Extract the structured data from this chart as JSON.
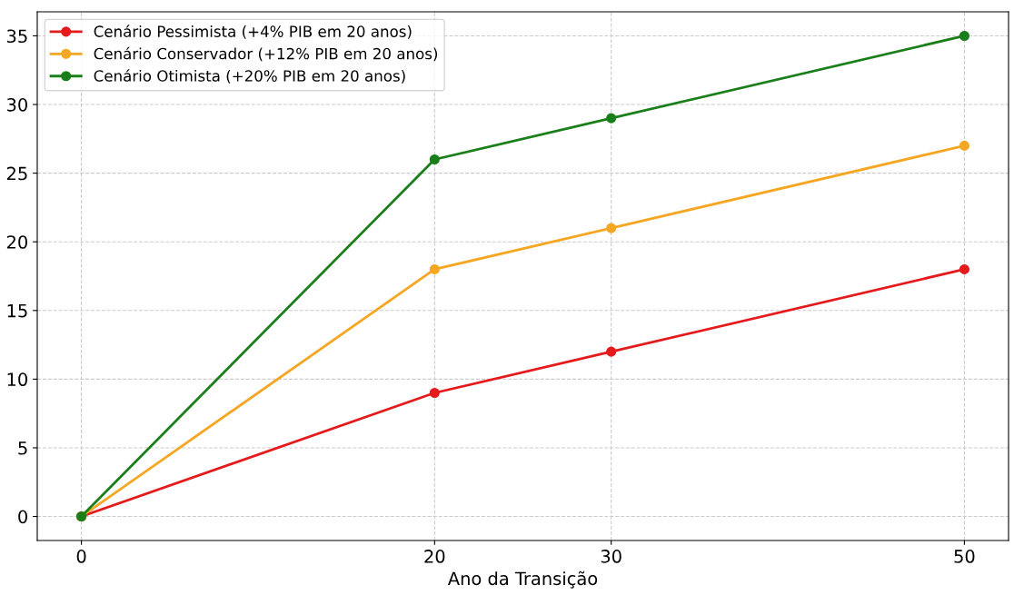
{
  "chart_data": {
    "type": "line",
    "xlabel": "Ano da Transição",
    "x": [
      0,
      20,
      30,
      50
    ],
    "series": [
      {
        "name": "Cenário Pessimista (+4% PIB em 20 anos)",
        "color": "#e41a1c",
        "values": [
          0,
          9,
          12,
          18
        ]
      },
      {
        "name": "Cenário Conservador (+12% PIB em 20 anos)",
        "color": "#f5a623",
        "values": [
          0,
          18,
          21,
          27
        ]
      },
      {
        "name": "Cenário Otimista (+20% PIB em 20 anos)",
        "color": "#1a7f1a",
        "values": [
          0,
          26,
          29,
          35
        ]
      }
    ],
    "xlim": [
      -2.5,
      52.5
    ],
    "xticks": [
      0,
      20,
      30,
      50
    ],
    "ylim": [
      -1.75,
      36.75
    ],
    "yticks": [
      0,
      5,
      10,
      15,
      20,
      25,
      30,
      35
    ],
    "grid": true,
    "legend": "top left",
    "marker": "circle",
    "line_style": "solid"
  }
}
